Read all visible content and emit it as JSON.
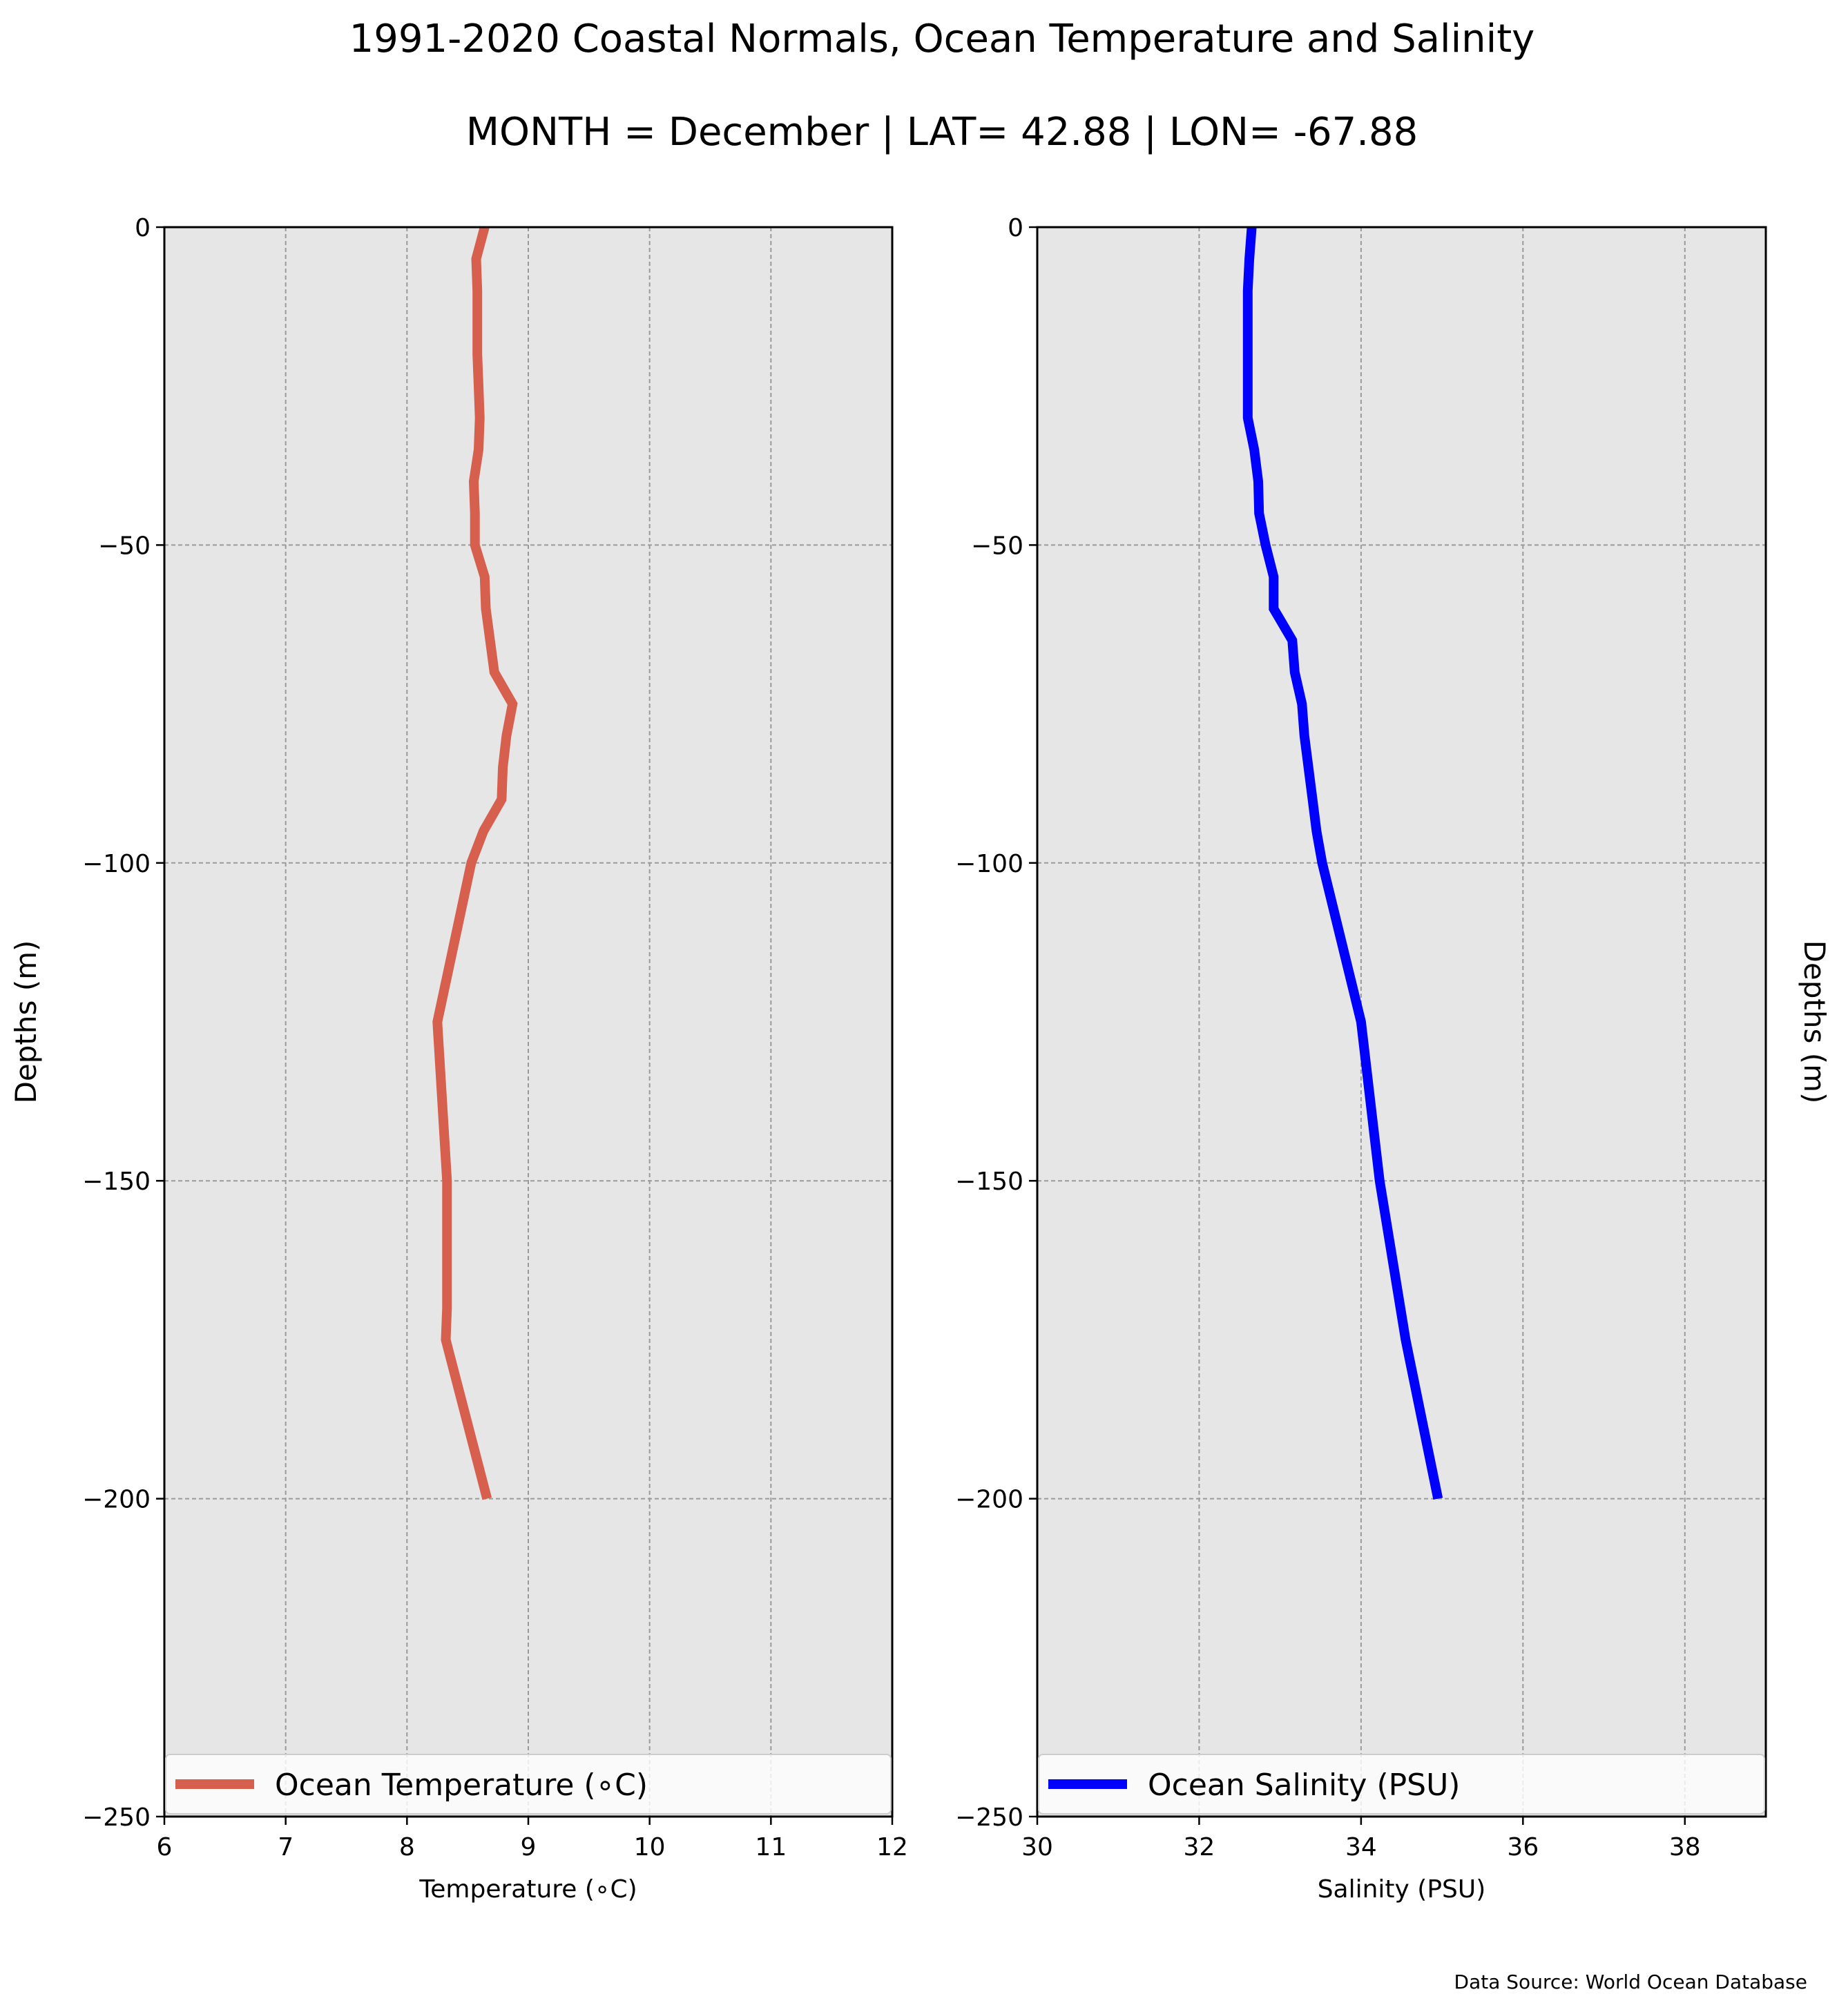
{
  "title": "1991-2020 Coastal Normals, Ocean Temperature and Salinity",
  "subtitle": "MONTH = December | LAT= 42.88 | LON= -67.88",
  "source": "Data Source: World Ocean Database",
  "chart_data": [
    {
      "type": "line",
      "orientation": "vertical-profile",
      "xlabel": "Temperature ($^\\circ$C)",
      "xlabel_display": "Temperature (∘C)",
      "ylabel": "Depths (m)",
      "xlim": [
        6,
        12
      ],
      "ylim": [
        -250,
        0
      ],
      "xticks": [
        6,
        7,
        8,
        9,
        10,
        11,
        12
      ],
      "yticks": [
        0,
        -50,
        -100,
        -150,
        -200,
        -250
      ],
      "xtick_labels": [
        "6",
        "7",
        "8",
        "9",
        "10",
        "11",
        "12"
      ],
      "ytick_labels": [
        "0",
        "−50",
        "−100",
        "−150",
        "−200",
        "−250"
      ],
      "grid": true,
      "background": "#e6e6e6",
      "legend_position": "bottom",
      "series": [
        {
          "name": "Ocean Temperature (∘C)",
          "color": "#d65f4e",
          "x": [
            8.64,
            8.57,
            8.58,
            8.58,
            8.58,
            8.59,
            8.6,
            8.59,
            8.55,
            8.56,
            8.56,
            8.64,
            8.65,
            8.72,
            8.87,
            8.82,
            8.79,
            8.78,
            8.63,
            8.53,
            8.25,
            8.33,
            8.33,
            8.33,
            8.32,
            8.66
          ],
          "y": [
            0,
            -5,
            -10,
            -15,
            -20,
            -25,
            -30,
            -35,
            -40,
            -45,
            -50,
            -55,
            -60,
            -70,
            -75,
            -80,
            -85,
            -90,
            -95,
            -100,
            -125,
            -150,
            -160,
            -170,
            -175,
            -200
          ]
        }
      ]
    },
    {
      "type": "line",
      "orientation": "vertical-profile",
      "xlabel": "Salinity (PSU)",
      "ylabel": "Depths (m)",
      "xlim": [
        30,
        39
      ],
      "ylim": [
        -250,
        0
      ],
      "xticks": [
        30,
        32,
        34,
        36,
        38
      ],
      "yticks": [
        0,
        -50,
        -100,
        -150,
        -200,
        -250
      ],
      "xtick_labels": [
        "30",
        "32",
        "34",
        "36",
        "38"
      ],
      "ytick_labels": [
        "0",
        "−50",
        "−100",
        "−150",
        "−200",
        "−250"
      ],
      "grid": true,
      "background": "#e6e6e6",
      "legend_position": "bottom",
      "series": [
        {
          "name": "Ocean Salinity (PSU)",
          "color": "#0000ff",
          "x": [
            32.65,
            32.62,
            32.6,
            32.6,
            32.6,
            32.6,
            32.6,
            32.68,
            32.73,
            32.74,
            32.82,
            32.92,
            32.92,
            33.15,
            33.18,
            33.27,
            33.3,
            33.35,
            33.4,
            33.45,
            33.52,
            34.0,
            34.23,
            34.55,
            34.95
          ],
          "y": [
            0,
            -5,
            -10,
            -15,
            -20,
            -25,
            -30,
            -35,
            -40,
            -45,
            -50,
            -55,
            -60,
            -65,
            -70,
            -75,
            -80,
            -85,
            -90,
            -95,
            -100,
            -125,
            -150,
            -175,
            -200
          ]
        }
      ]
    }
  ]
}
